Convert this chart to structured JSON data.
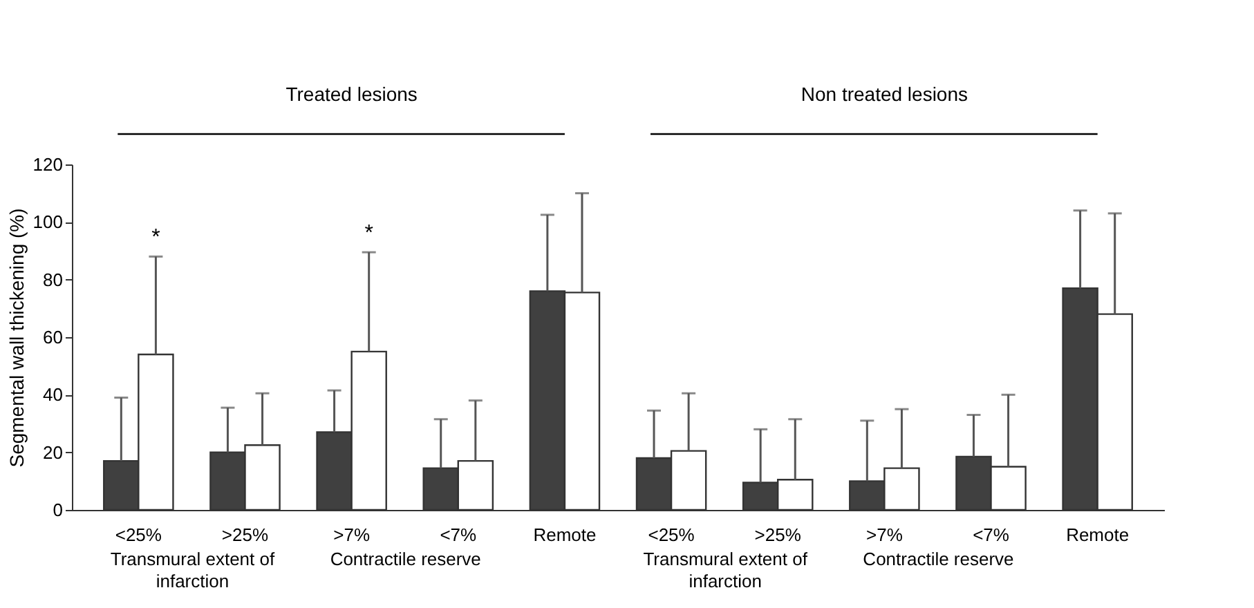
{
  "chart_data": {
    "type": "bar",
    "ylabel": "Segmental wall thickening (%)",
    "categories": [
      "<25%",
      ">25%",
      ">7%",
      "<7%",
      "Remote",
      "<25%",
      ">25%",
      ">7%",
      "<7%",
      "Remote"
    ],
    "series": [
      {
        "color": "#404040",
        "values": [
          17,
          20,
          27,
          14.5,
          76,
          18,
          9.5,
          10,
          18.5,
          77
        ],
        "errors": [
          [
            17,
            39
          ],
          [
            20,
            35.5
          ],
          [
            27,
            41.5
          ],
          [
            14.5,
            31.5
          ],
          [
            76,
            102.5
          ],
          [
            18,
            34.5
          ],
          [
            9.5,
            28
          ],
          [
            10,
            31
          ],
          [
            18.5,
            33
          ],
          [
            77,
            104
          ]
        ]
      },
      {
        "color": "#ffffff",
        "values": [
          54,
          22.5,
          55,
          17,
          75.5,
          20.5,
          10.5,
          14.5,
          15,
          68
        ],
        "errors": [
          [
            54,
            88
          ],
          [
            22.5,
            40.5
          ],
          [
            55,
            89.5
          ],
          [
            17,
            38
          ],
          [
            75.5,
            110
          ],
          [
            20.5,
            40.5
          ],
          [
            10.5,
            31.5
          ],
          [
            14.5,
            35
          ],
          [
            15,
            40
          ],
          [
            68,
            103
          ]
        ]
      }
    ],
    "ylim": [
      0,
      120
    ],
    "yticks": [
      0,
      20,
      40,
      60,
      80,
      100,
      120
    ],
    "grid": false,
    "legend": false,
    "annotations": [
      "Treated lesions",
      "Non treated lesions",
      "Transmural extent of infarction",
      "Contractile reserve",
      "Transmural extent of infarction",
      "Contractile reserve",
      "*",
      "*"
    ]
  }
}
